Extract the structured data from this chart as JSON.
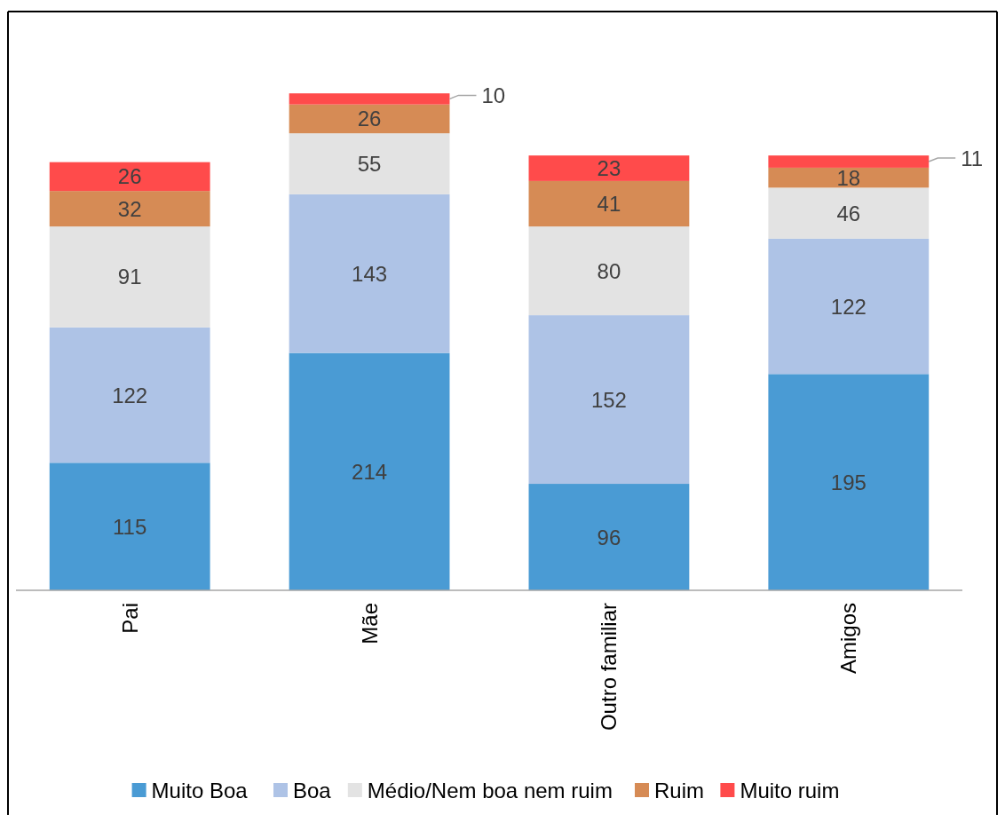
{
  "chart_data": {
    "type": "bar",
    "stacked": true,
    "data_labels": true,
    "legend": "bottom",
    "categories": [
      "Pai",
      "Mãe",
      "Outro familiar",
      "Amigos"
    ],
    "series": [
      {
        "name": "Muito Boa",
        "color": "#4a9bd4",
        "values": [
          115,
          214,
          96,
          195
        ]
      },
      {
        "name": "Boa",
        "color": "#aec3e6",
        "values": [
          122,
          143,
          152,
          122
        ]
      },
      {
        "name": "Médio/Nem boa nem ruim",
        "color": "#e3e3e3",
        "values": [
          91,
          55,
          80,
          46
        ]
      },
      {
        "name": "Ruim",
        "color": "#d68b55",
        "values": [
          32,
          26,
          41,
          18
        ]
      },
      {
        "name": "Muito ruim",
        "color": "#ff4b4b",
        "values": [
          26,
          10,
          23,
          11
        ]
      }
    ]
  }
}
